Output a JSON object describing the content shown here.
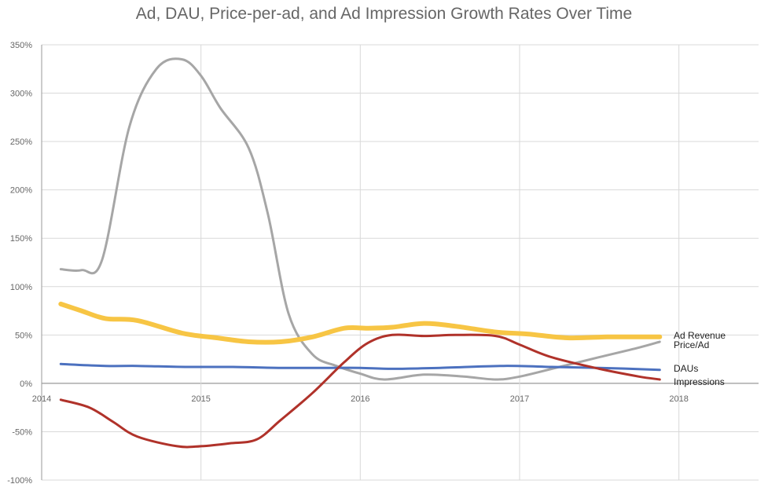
{
  "chart_data": {
    "type": "line",
    "title": "Ad, DAU, Price-per-ad, and Ad Impression Growth Rates Over Time",
    "xlabel": "",
    "ylabel": "",
    "xlim": [
      2014,
      2018.5
    ],
    "ylim": [
      -100,
      350
    ],
    "x_ticks": [
      {
        "value": 2014,
        "label": "2014"
      },
      {
        "value": 2015,
        "label": "2015"
      },
      {
        "value": 2016,
        "label": "2016"
      },
      {
        "value": 2017,
        "label": "2017"
      },
      {
        "value": 2018,
        "label": "2018"
      }
    ],
    "y_ticks": [
      {
        "value": 350,
        "label": "350%"
      },
      {
        "value": 300,
        "label": "300%"
      },
      {
        "value": 250,
        "label": "250%"
      },
      {
        "value": 200,
        "label": "200%"
      },
      {
        "value": 150,
        "label": "150%"
      },
      {
        "value": 100,
        "label": "100%"
      },
      {
        "value": 50,
        "label": "50%"
      },
      {
        "value": 0,
        "label": "0%"
      },
      {
        "value": -50,
        "label": "-50%"
      },
      {
        "value": -100,
        "label": "-100%"
      }
    ],
    "grid": true,
    "legend": "inline labels at right end of each series",
    "series": [
      {
        "name": "Price/Ad",
        "color": "#a6a6a6",
        "x": [
          2014.12,
          2014.25,
          2014.38,
          2014.55,
          2014.72,
          2014.88,
          2015.0,
          2015.12,
          2015.3,
          2015.42,
          2015.55,
          2015.7,
          2015.85,
          2016.0,
          2016.15,
          2016.4,
          2016.65,
          2016.85,
          2017.0,
          2017.25,
          2017.5,
          2017.75,
          2017.88
        ],
        "values": [
          118,
          117,
          128,
          265,
          325,
          335,
          318,
          285,
          243,
          175,
          72,
          30,
          18,
          10,
          4,
          9,
          7,
          4,
          7,
          17,
          27,
          37,
          43
        ]
      },
      {
        "name": "Ad Revenue",
        "color": "#f7c544",
        "x": [
          2014.12,
          2014.25,
          2014.4,
          2014.6,
          2014.88,
          2015.1,
          2015.3,
          2015.5,
          2015.7,
          2015.9,
          2016.05,
          2016.2,
          2016.4,
          2016.6,
          2016.85,
          2017.05,
          2017.3,
          2017.55,
          2017.75,
          2017.88
        ],
        "values": [
          82,
          75,
          67,
          65,
          52,
          47,
          43,
          43,
          48,
          57,
          57,
          58,
          62,
          59,
          53,
          51,
          47,
          48,
          48,
          48
        ]
      },
      {
        "name": "DAUs",
        "color": "#4c71bf",
        "x": [
          2014.12,
          2014.4,
          2014.6,
          2014.9,
          2015.2,
          2015.5,
          2015.8,
          2016.0,
          2016.2,
          2016.5,
          2016.9,
          2017.2,
          2017.5,
          2017.88
        ],
        "values": [
          20,
          18,
          18,
          17,
          17,
          16,
          16,
          16,
          15,
          16,
          18,
          17,
          16,
          14
        ]
      },
      {
        "name": "Impressions",
        "color": "#b0322a",
        "x": [
          2014.12,
          2014.3,
          2014.45,
          2014.6,
          2014.85,
          2015.0,
          2015.18,
          2015.35,
          2015.5,
          2015.7,
          2015.9,
          2016.05,
          2016.2,
          2016.4,
          2016.6,
          2016.85,
          2017.0,
          2017.2,
          2017.5,
          2017.75,
          2017.88
        ],
        "values": [
          -17,
          -25,
          -40,
          -55,
          -65,
          -65,
          -62,
          -58,
          -38,
          -10,
          22,
          42,
          50,
          49,
          50,
          49,
          40,
          27,
          15,
          7,
          4
        ]
      }
    ],
    "end_labels": [
      "Ad Revenue",
      "Price/Ad",
      "DAUs",
      "Impressions"
    ]
  }
}
